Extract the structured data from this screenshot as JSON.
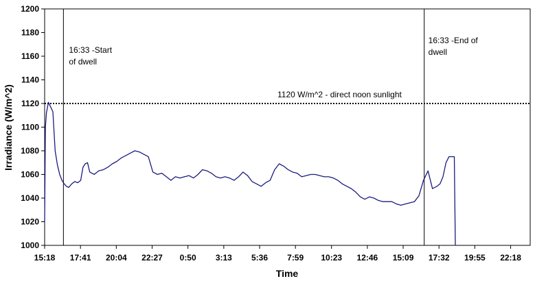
{
  "chart_data": {
    "type": "line",
    "title": "",
    "xlabel": "Time",
    "ylabel": "Irradiance (W/m^2)",
    "ylim": [
      1000,
      1200
    ],
    "y_ticks": [
      1000,
      1020,
      1040,
      1060,
      1080,
      1100,
      1120,
      1140,
      1160,
      1180,
      1200
    ],
    "x_ticks": [
      "15:18",
      "17:41",
      "20:04",
      "22:27",
      "0:50",
      "3:13",
      "5:36",
      "7:59",
      "10:23",
      "12:46",
      "15:09",
      "17:32",
      "19:55",
      "22:18"
    ],
    "x_tick_hours": [
      0,
      2.383,
      4.767,
      7.15,
      9.533,
      11.917,
      14.3,
      16.683,
      19.083,
      21.467,
      23.85,
      26.233,
      28.617,
      31
    ],
    "x_range_hours": [
      0,
      32.3
    ],
    "grid": false,
    "series": [
      {
        "color": "#1a1a80",
        "x_hours": [
          0.0,
          0.05,
          0.12,
          0.25,
          0.4,
          0.55,
          0.7,
          0.85,
          1.0,
          1.15,
          1.3,
          1.45,
          1.6,
          1.8,
          2.0,
          2.2,
          2.4,
          2.55,
          2.7,
          2.85,
          3.0,
          3.3,
          3.6,
          3.9,
          4.2,
          4.5,
          4.8,
          5.1,
          5.4,
          5.7,
          6.0,
          6.3,
          6.6,
          6.9,
          7.2,
          7.5,
          7.8,
          8.1,
          8.4,
          8.7,
          9.0,
          9.3,
          9.6,
          9.9,
          10.2,
          10.5,
          10.8,
          11.1,
          11.4,
          11.7,
          12.0,
          12.3,
          12.6,
          12.9,
          13.2,
          13.5,
          13.8,
          14.1,
          14.4,
          14.7,
          15.0,
          15.3,
          15.6,
          15.9,
          16.2,
          16.5,
          16.8,
          17.1,
          17.4,
          17.7,
          18.0,
          18.3,
          18.6,
          18.9,
          19.2,
          19.5,
          19.8,
          20.1,
          20.4,
          20.7,
          21.0,
          21.3,
          21.6,
          21.9,
          22.2,
          22.5,
          22.8,
          23.1,
          23.4,
          23.7,
          24.0,
          24.3,
          24.6,
          24.9,
          25.2,
          25.5,
          25.8,
          26.1,
          26.3,
          26.5,
          26.7,
          26.9,
          27.1,
          27.25,
          27.32
        ],
        "values": [
          1020,
          1100,
          1112,
          1121,
          1117,
          1113,
          1080,
          1068,
          1060,
          1055,
          1052,
          1050,
          1049,
          1052,
          1054,
          1053,
          1055,
          1066,
          1069,
          1070,
          1062,
          1060,
          1063,
          1064,
          1066,
          1069,
          1071,
          1074,
          1076,
          1078,
          1080,
          1079,
          1077,
          1075,
          1062,
          1060,
          1061,
          1058,
          1055,
          1058,
          1057,
          1058,
          1059,
          1057,
          1060,
          1064,
          1063,
          1061,
          1058,
          1057,
          1058,
          1057,
          1055,
          1058,
          1062,
          1059,
          1054,
          1052,
          1050,
          1053,
          1055,
          1064,
          1069,
          1067,
          1064,
          1062,
          1061,
          1058,
          1059,
          1060,
          1060,
          1059,
          1058,
          1058,
          1057,
          1055,
          1052,
          1050,
          1048,
          1045,
          1041,
          1039,
          1041,
          1040,
          1038,
          1037,
          1037,
          1037,
          1035,
          1034,
          1035,
          1036,
          1037,
          1042,
          1055,
          1063,
          1048,
          1050,
          1052,
          1058,
          1070,
          1075,
          1075,
          1075,
          1000
        ]
      }
    ],
    "annotations": [
      {
        "text": "1120 W/m^2 - direct noon sunlight",
        "value": 1120,
        "kind": "horizontal-dotted-line"
      },
      {
        "text_lines": [
          "16:33 -Start",
          "of dwell"
        ],
        "x_hours": 1.25,
        "kind": "vertical-line"
      },
      {
        "text_lines": [
          "16:33 -End of",
          "dwell"
        ],
        "x_hours": 25.25,
        "kind": "vertical-line"
      }
    ]
  }
}
